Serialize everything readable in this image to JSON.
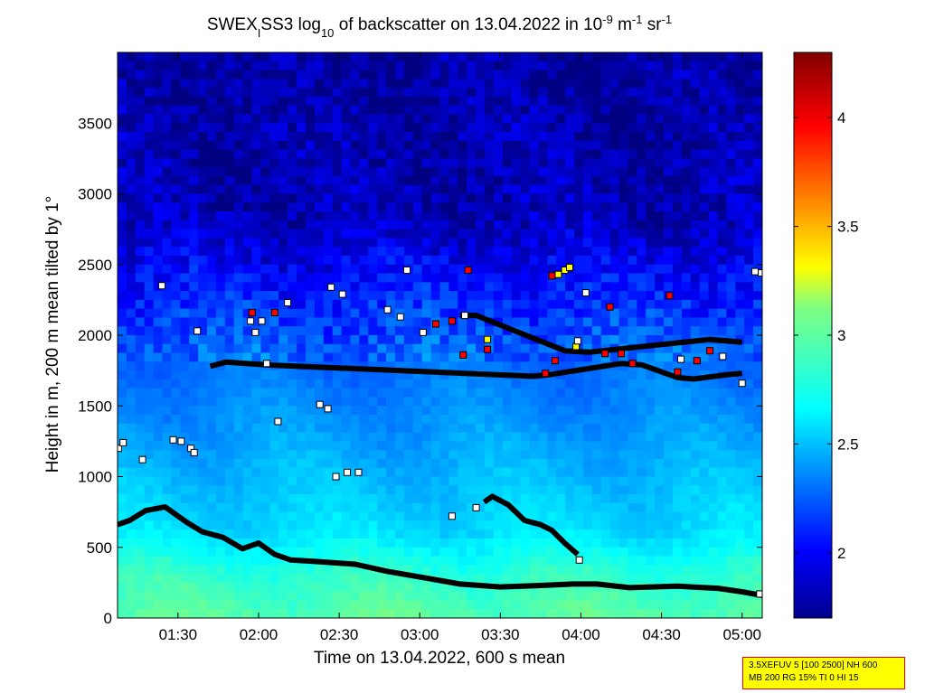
{
  "chart_data": {
    "type": "heatmap",
    "title": {
      "pre": "SWEX",
      "sub1": "I",
      "mid": "SS3 log",
      "sub2": "10",
      "post": " of backscatter on 13.04.2022 in 10",
      "sup1": "-9",
      "unit_m": " m",
      "sup2": "-1",
      "unit_sr": " sr",
      "sup3": "-1"
    },
    "xlabel": "Time on 13.04.2022, 600 s mean",
    "ylabel": "Height in m, 200 m mean tilted by 1°",
    "x_range_hours": [
      1.125,
      5.125
    ],
    "ylim": [
      0,
      4000
    ],
    "xticks": [
      {
        "value": 1.5,
        "label": "01:30"
      },
      {
        "value": 2.0,
        "label": "02:00"
      },
      {
        "value": 2.5,
        "label": "02:30"
      },
      {
        "value": 3.0,
        "label": "03:00"
      },
      {
        "value": 3.5,
        "label": "03:30"
      },
      {
        "value": 4.0,
        "label": "04:00"
      },
      {
        "value": 4.5,
        "label": "04:30"
      },
      {
        "value": 5.0,
        "label": "05:00"
      }
    ],
    "yticks": [
      {
        "value": 0,
        "label": "0"
      },
      {
        "value": 500,
        "label": "500"
      },
      {
        "value": 1000,
        "label": "1000"
      },
      {
        "value": 1500,
        "label": "1500"
      },
      {
        "value": 2000,
        "label": "2000"
      },
      {
        "value": 2500,
        "label": "2500"
      },
      {
        "value": 3000,
        "label": "3000"
      },
      {
        "value": 3500,
        "label": "3500"
      }
    ],
    "colorbar": {
      "range": [
        1.7,
        4.3
      ],
      "ticks": [
        {
          "value": 2.0,
          "label": "2"
        },
        {
          "value": 2.5,
          "label": "2.5"
        },
        {
          "value": 3.0,
          "label": "3"
        },
        {
          "value": 3.5,
          "label": "3.5"
        },
        {
          "value": 4.0,
          "label": "4"
        }
      ]
    },
    "background_field": {
      "comment": "approximate log10 backscatter vs height (m)",
      "profile": [
        {
          "h": 0,
          "v": 2.9
        },
        {
          "h": 300,
          "v": 2.8
        },
        {
          "h": 600,
          "v": 2.6
        },
        {
          "h": 1200,
          "v": 2.45
        },
        {
          "h": 1800,
          "v": 2.3
        },
        {
          "h": 2300,
          "v": 2.1
        },
        {
          "h": 2800,
          "v": 1.85
        },
        {
          "h": 4000,
          "v": 1.78
        }
      ]
    },
    "series": [
      {
        "kind": "layer-line",
        "points": [
          [
            1.125,
            660
          ],
          [
            1.2,
            690
          ],
          [
            1.3,
            760
          ],
          [
            1.42,
            785
          ],
          [
            1.55,
            680
          ],
          [
            1.65,
            610
          ],
          [
            1.78,
            570
          ],
          [
            1.9,
            490
          ],
          [
            2.0,
            530
          ],
          [
            2.1,
            450
          ],
          [
            2.2,
            410
          ],
          [
            2.35,
            400
          ],
          [
            2.6,
            380
          ],
          [
            2.8,
            330
          ],
          [
            3.0,
            290
          ],
          [
            3.25,
            240
          ],
          [
            3.5,
            220
          ],
          [
            3.75,
            230
          ],
          [
            3.95,
            240
          ],
          [
            4.1,
            240
          ],
          [
            4.3,
            215
          ],
          [
            4.6,
            225
          ],
          [
            4.85,
            210
          ],
          [
            5.0,
            185
          ],
          [
            5.125,
            160
          ]
        ]
      },
      {
        "kind": "layer-line",
        "points": [
          [
            3.4,
            820
          ],
          [
            3.45,
            860
          ],
          [
            3.55,
            800
          ],
          [
            3.65,
            690
          ],
          [
            3.75,
            660
          ],
          [
            3.82,
            620
          ],
          [
            3.9,
            530
          ],
          [
            3.98,
            450
          ]
        ]
      },
      {
        "kind": "layer-line",
        "points": [
          [
            1.7,
            1780
          ],
          [
            1.8,
            1810
          ],
          [
            2.05,
            1790
          ],
          [
            3.7,
            1710
          ],
          [
            3.8,
            1720
          ],
          [
            4.25,
            1800
          ],
          [
            4.38,
            1790
          ],
          [
            4.6,
            1700
          ],
          [
            4.7,
            1690
          ],
          [
            4.9,
            1720
          ],
          [
            5.0,
            1730
          ]
        ]
      },
      {
        "kind": "layer-line",
        "points": [
          [
            3.25,
            2140
          ],
          [
            3.35,
            2140
          ],
          [
            3.9,
            1890
          ],
          [
            4.05,
            1880
          ],
          [
            4.8,
            1970
          ],
          [
            5.0,
            1950
          ]
        ]
      }
    ],
    "markers": [
      {
        "x": 1.13,
        "y": 1200,
        "c": "w"
      },
      {
        "x": 1.16,
        "y": 1240,
        "c": "w"
      },
      {
        "x": 1.28,
        "y": 1120,
        "c": "w"
      },
      {
        "x": 1.4,
        "y": 2350,
        "c": "w"
      },
      {
        "x": 1.47,
        "y": 1260,
        "c": "w"
      },
      {
        "x": 1.52,
        "y": 1250,
        "c": "w"
      },
      {
        "x": 1.58,
        "y": 1200,
        "c": "w"
      },
      {
        "x": 1.6,
        "y": 1170,
        "c": "w"
      },
      {
        "x": 1.62,
        "y": 2030,
        "c": "w"
      },
      {
        "x": 1.96,
        "y": 2160,
        "c": "r"
      },
      {
        "x": 1.95,
        "y": 2100,
        "c": "w"
      },
      {
        "x": 2.02,
        "y": 2100,
        "c": "w"
      },
      {
        "x": 2.1,
        "y": 2160,
        "c": "r"
      },
      {
        "x": 1.98,
        "y": 2020,
        "c": "w"
      },
      {
        "x": 2.05,
        "y": 1800,
        "c": "w"
      },
      {
        "x": 2.12,
        "y": 1390,
        "c": "w"
      },
      {
        "x": 2.18,
        "y": 2230,
        "c": "w"
      },
      {
        "x": 2.38,
        "y": 1510,
        "c": "w"
      },
      {
        "x": 2.43,
        "y": 1480,
        "c": "w"
      },
      {
        "x": 2.45,
        "y": 2340,
        "c": "w"
      },
      {
        "x": 2.52,
        "y": 2290,
        "c": "w"
      },
      {
        "x": 2.48,
        "y": 1000,
        "c": "w"
      },
      {
        "x": 2.55,
        "y": 1030,
        "c": "w"
      },
      {
        "x": 2.62,
        "y": 1030,
        "c": "w"
      },
      {
        "x": 2.8,
        "y": 2180,
        "c": "w"
      },
      {
        "x": 2.88,
        "y": 2130,
        "c": "w"
      },
      {
        "x": 2.92,
        "y": 2460,
        "c": "w"
      },
      {
        "x": 3.1,
        "y": 2080,
        "c": "r"
      },
      {
        "x": 3.02,
        "y": 2020,
        "c": "w"
      },
      {
        "x": 3.2,
        "y": 2100,
        "c": "r"
      },
      {
        "x": 3.28,
        "y": 2140,
        "c": "w"
      },
      {
        "x": 3.27,
        "y": 1860,
        "c": "r"
      },
      {
        "x": 3.3,
        "y": 2460,
        "c": "r"
      },
      {
        "x": 3.42,
        "y": 1970,
        "c": "y"
      },
      {
        "x": 3.42,
        "y": 1900,
        "c": "r"
      },
      {
        "x": 3.2,
        "y": 720,
        "c": "w"
      },
      {
        "x": 3.35,
        "y": 780,
        "c": "w"
      },
      {
        "x": 3.78,
        "y": 1730,
        "c": "r"
      },
      {
        "x": 3.84,
        "y": 1820,
        "c": "r"
      },
      {
        "x": 3.82,
        "y": 2420,
        "c": "r"
      },
      {
        "x": 3.86,
        "y": 2430,
        "c": "y"
      },
      {
        "x": 3.9,
        "y": 2460,
        "c": "y"
      },
      {
        "x": 3.93,
        "y": 2480,
        "c": "y"
      },
      {
        "x": 3.97,
        "y": 1920,
        "c": "y"
      },
      {
        "x": 3.98,
        "y": 1960,
        "c": "w"
      },
      {
        "x": 3.99,
        "y": 410,
        "c": "w"
      },
      {
        "x": 4.03,
        "y": 2300,
        "c": "w"
      },
      {
        "x": 4.15,
        "y": 1870,
        "c": "r"
      },
      {
        "x": 4.18,
        "y": 2200,
        "c": "r"
      },
      {
        "x": 4.25,
        "y": 1870,
        "c": "r"
      },
      {
        "x": 4.32,
        "y": 1800,
        "c": "r"
      },
      {
        "x": 4.55,
        "y": 2280,
        "c": "r"
      },
      {
        "x": 4.6,
        "y": 1740,
        "c": "r"
      },
      {
        "x": 4.72,
        "y": 1820,
        "c": "r"
      },
      {
        "x": 4.8,
        "y": 1890,
        "c": "r"
      },
      {
        "x": 4.62,
        "y": 1830,
        "c": "w"
      },
      {
        "x": 4.88,
        "y": 1850,
        "c": "w"
      },
      {
        "x": 5.0,
        "y": 1660,
        "c": "w"
      },
      {
        "x": 5.08,
        "y": 2450,
        "c": "w"
      },
      {
        "x": 5.12,
        "y": 2440,
        "c": "w"
      },
      {
        "x": 5.11,
        "y": 170,
        "c": "w"
      }
    ]
  },
  "info_box": {
    "line1": "3.5XEFUV 5 [100 2500] NH 600",
    "line2": "MB 200 RG 15% TI 0 HI 15"
  }
}
